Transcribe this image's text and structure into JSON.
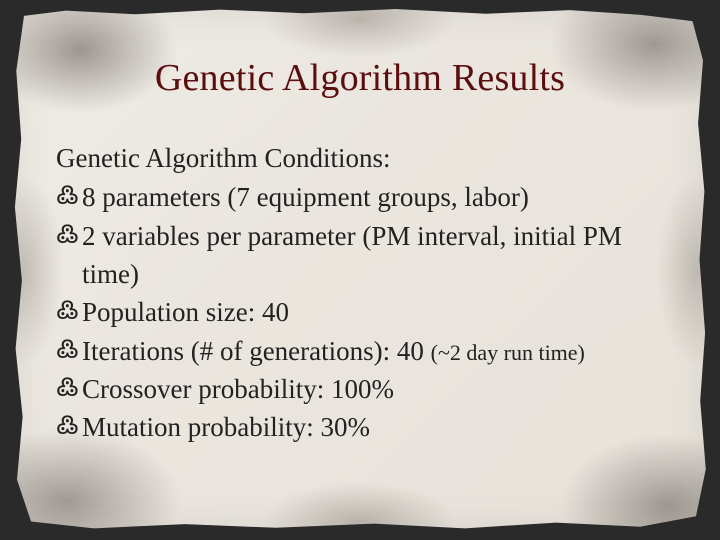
{
  "colors": {
    "background": "#2a2a2a",
    "paper_base": "#eae6df",
    "title_color": "#5b0e0e",
    "body_color": "#222222"
  },
  "typography": {
    "family": "Georgia, 'Times New Roman', serif",
    "title_size_pt": 29,
    "body_size_pt": 20,
    "small_size_pt": 17
  },
  "bullet_glyph": "་",
  "title": "Genetic Algorithm Results",
  "subtitle": "Genetic Algorithm Conditions:",
  "bullets": [
    {
      "text": "8 parameters (7 equipment groups, labor)"
    },
    {
      "text": "2 variables per parameter (PM interval, initial PM time)"
    },
    {
      "text": "Population size: 40"
    },
    {
      "text_main": "Iterations (# of generations): 40 ",
      "text_small": "(~2 day run time)"
    },
    {
      "text": "Crossover probability: 100%"
    },
    {
      "text": "Mutation probability: 30%"
    }
  ]
}
